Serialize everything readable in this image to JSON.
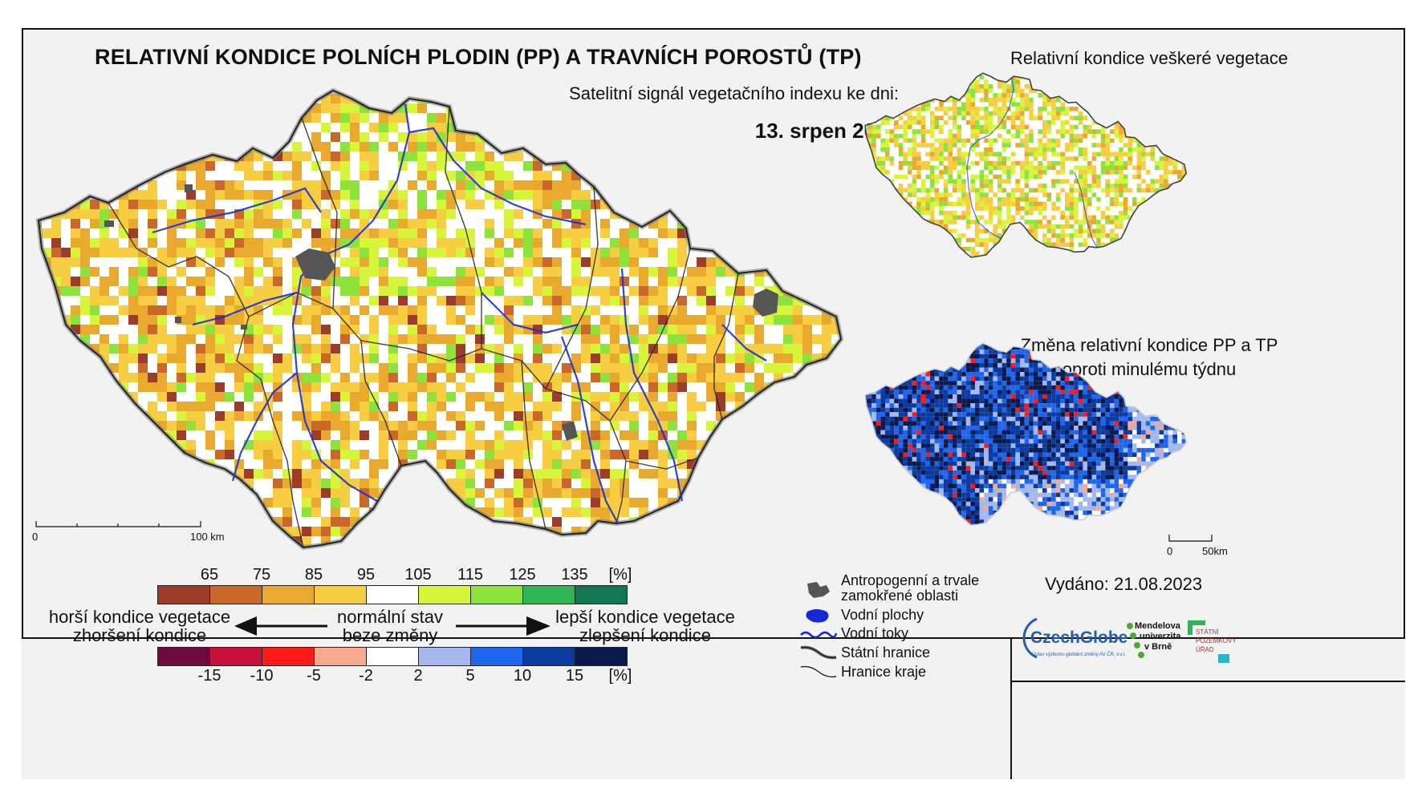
{
  "title": "RELATIVNÍ KONDICE POLNÍCH PLODIN (PP) A TRAVNÍCH POROSTŮ (TP)",
  "subtitle": "Satelitní signál vegetačního indexu ke dni:",
  "date": "13. srpen 2023",
  "side_map_top_title": "Relativní kondice veškeré vegetace",
  "side_map_bottom_title_line1": "Změna relativní kondice PP a TP",
  "side_map_bottom_title_line2": "oproti minulému týdnu",
  "main_scale": {
    "start": "0",
    "end": "100 km"
  },
  "small_scale": {
    "start": "0",
    "end": "50km"
  },
  "condition_legend": {
    "ticks": [
      "65",
      "75",
      "85",
      "95",
      "105",
      "115",
      "125",
      "135",
      "[%]"
    ],
    "colors": [
      "#9c3d2c",
      "#c9682a",
      "#e8a92e",
      "#f7cd42",
      "#ffffff",
      "#d7f53a",
      "#8de23c",
      "#2fb457",
      "#107752"
    ]
  },
  "change_legend": {
    "ticks": [
      "-15",
      "-10",
      "-5",
      "-2",
      "2",
      "5",
      "10",
      "15",
      "[%]"
    ],
    "colors": [
      "#6e0a3e",
      "#c8103a",
      "#ff1a1a",
      "#f8a98d",
      "#ffffff",
      "#a5b8ee",
      "#1f66ef",
      "#0c3a9e",
      "#0a1a4d"
    ]
  },
  "worse_line1": "horší kondice vegetace",
  "worse_line2": "zhoršení kondice",
  "normal_line1": "normální stav",
  "normal_line2": "beze změny",
  "better_line1": "lepší kondice vegetace",
  "better_line2": "zlepšení kondice",
  "map_key": {
    "anthropogenic_line1": "Antropogenní a trvale",
    "anthropogenic_line2": "zamokřené oblasti",
    "water_bodies": "Vodní plochy",
    "rivers": "Vodní toky",
    "state_border": "Státní hranice",
    "region_border": "Hranice kraje"
  },
  "issued": "Vydáno: 21.08.2023",
  "logos": {
    "czechglobe": "CzechGlobe",
    "czechglobe_sub": "Ústav výzkumu globální změny AV ČR, v.v.i.",
    "mendelu_line1": "Mendelova",
    "mendelu_line2": "univerzita",
    "mendelu_line3": "v Brně",
    "spu_line1": "STÁTNÍ",
    "spu_line2": "POZEMKOVÝ",
    "spu_line3": "ÚŘAD"
  }
}
